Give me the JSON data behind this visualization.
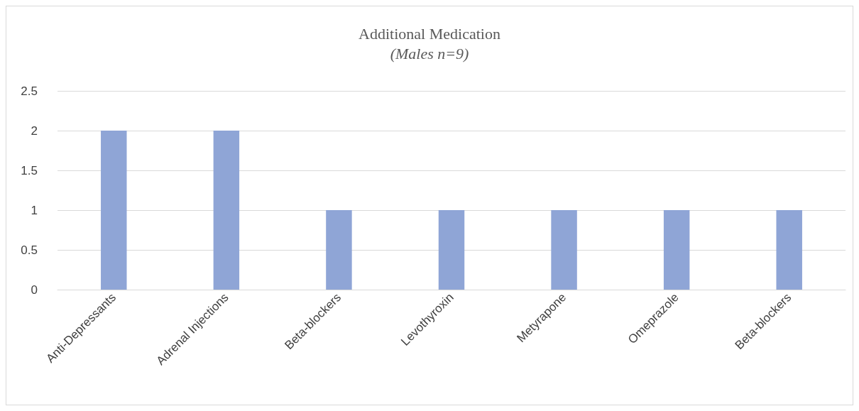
{
  "chart_data": {
    "type": "bar",
    "title": "Additional Medication",
    "subtitle": "(Males n=9)",
    "categories": [
      "Anti-Depressants",
      "Adrenal Injections",
      "Beta-blockers",
      "Levothyroxin",
      "Metyrapone",
      "Omeprazole",
      "Beta-blockers"
    ],
    "values": [
      2,
      2,
      1,
      1,
      1,
      1,
      1
    ],
    "color": "#8fa5d6",
    "ylim": [
      0,
      2.5
    ],
    "yticks": [
      0,
      0.5,
      1,
      1.5,
      2,
      2.5
    ],
    "grid": "y"
  }
}
